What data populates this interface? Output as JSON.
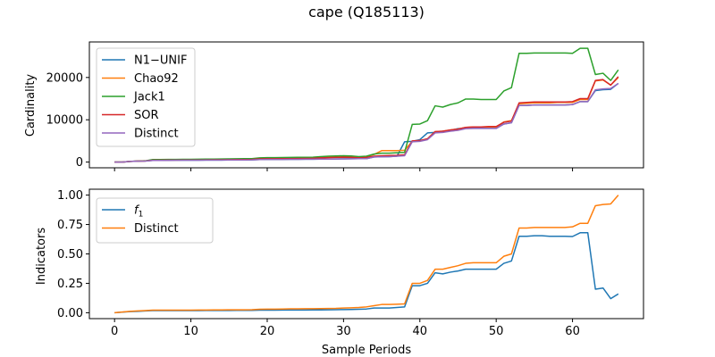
{
  "figure": {
    "title": "cape (Q185113)",
    "xlabel": "Sample Periods"
  },
  "chart_data": [
    {
      "type": "line",
      "ylabel": "Cardinality",
      "xlim": [
        -3.3,
        69.3
      ],
      "ylim": [
        -1350,
        28400
      ],
      "xticks": [
        0,
        10,
        20,
        30,
        40,
        50,
        60
      ],
      "xticklabels_visible": false,
      "yticks": [
        0,
        10000,
        20000
      ],
      "yticklabels": [
        "0",
        "10000",
        "20000"
      ],
      "grid": false,
      "legend": "top-left",
      "x": [
        0,
        1,
        2,
        3,
        4,
        5,
        6,
        7,
        8,
        9,
        10,
        11,
        12,
        13,
        14,
        15,
        16,
        17,
        18,
        19,
        20,
        21,
        22,
        23,
        24,
        25,
        26,
        27,
        28,
        29,
        30,
        31,
        32,
        33,
        34,
        35,
        36,
        37,
        38,
        39,
        40,
        41,
        42,
        43,
        44,
        45,
        46,
        47,
        48,
        49,
        50,
        51,
        52,
        53,
        54,
        55,
        56,
        57,
        58,
        59,
        60,
        61,
        62,
        63,
        64,
        65,
        66
      ],
      "series": [
        {
          "name": "N1−UNIF",
          "color": "#1f77b4",
          "values": [
            0,
            0,
            150,
            220,
            250,
            400,
            400,
            420,
            430,
            440,
            440,
            450,
            460,
            470,
            480,
            490,
            500,
            500,
            510,
            600,
            620,
            620,
            640,
            650,
            660,
            670,
            680,
            700,
            720,
            740,
            760,
            780,
            800,
            820,
            1200,
            1250,
            1300,
            1400,
            4800,
            4900,
            5300,
            6900,
            7000,
            7300,
            7500,
            7900,
            8000,
            8000,
            8000,
            8000,
            8000,
            9000,
            9300,
            13400,
            13400,
            13500,
            13500,
            13500,
            13500,
            13500,
            13600,
            14300,
            14300,
            16900,
            17100,
            17200,
            18600
          ]
        },
        {
          "name": "Chao92",
          "color": "#ff7f0e",
          "values": [
            0,
            0,
            150,
            200,
            250,
            500,
            500,
            520,
            540,
            560,
            560,
            580,
            600,
            620,
            640,
            660,
            680,
            700,
            720,
            900,
            950,
            950,
            980,
            1000,
            1020,
            1040,
            1060,
            1200,
            1300,
            1350,
            1400,
            1350,
            1200,
            1300,
            1800,
            2700,
            2700,
            2700,
            2800,
            4900,
            5000,
            5500,
            7200,
            7300,
            7600,
            7800,
            8200,
            8300,
            8300,
            8300,
            8300,
            9500,
            9800,
            13800,
            13900,
            14000,
            14000,
            14000,
            14100,
            14100,
            14100,
            14800,
            14800,
            19200,
            19400,
            18200,
            20000
          ]
        },
        {
          "name": "Jack1",
          "color": "#2ca02c",
          "values": [
            0,
            0,
            150,
            220,
            300,
            600,
            600,
            620,
            640,
            660,
            660,
            680,
            700,
            720,
            740,
            760,
            780,
            800,
            820,
            1000,
            1050,
            1050,
            1080,
            1100,
            1120,
            1140,
            1160,
            1300,
            1400,
            1450,
            1500,
            1450,
            1300,
            1400,
            1900,
            2100,
            2100,
            2200,
            2300,
            8900,
            9000,
            9800,
            13300,
            13000,
            13600,
            14000,
            14900,
            14900,
            14800,
            14800,
            14800,
            16800,
            17600,
            25700,
            25700,
            25800,
            25800,
            25800,
            25800,
            25800,
            25700,
            26900,
            26900,
            20700,
            21000,
            19300,
            21800
          ]
        },
        {
          "name": "SOR",
          "color": "#d62728",
          "values": [
            0,
            0,
            150,
            220,
            250,
            450,
            450,
            470,
            480,
            490,
            490,
            500,
            520,
            540,
            560,
            580,
            600,
            610,
            620,
            750,
            780,
            780,
            800,
            820,
            840,
            860,
            880,
            1000,
            1050,
            1100,
            1150,
            1100,
            1000,
            1100,
            1400,
            1500,
            1550,
            1600,
            1700,
            5000,
            5100,
            5500,
            7200,
            7300,
            7600,
            7800,
            8200,
            8300,
            8300,
            8400,
            8400,
            9400,
            9700,
            14000,
            14100,
            14200,
            14200,
            14200,
            14200,
            14200,
            14300,
            15000,
            15000,
            19300,
            19500,
            18200,
            20200
          ]
        },
        {
          "name": "Distinct",
          "color": "#9467bd",
          "values": [
            0,
            0,
            150,
            200,
            230,
            400,
            400,
            420,
            430,
            440,
            440,
            450,
            460,
            470,
            480,
            490,
            500,
            500,
            510,
            600,
            620,
            620,
            640,
            650,
            660,
            670,
            680,
            700,
            720,
            740,
            760,
            780,
            800,
            820,
            1200,
            1250,
            1300,
            1400,
            1500,
            4800,
            4900,
            5300,
            6900,
            7000,
            7300,
            7500,
            7900,
            7950,
            7950,
            7950,
            7950,
            9000,
            9300,
            13400,
            13400,
            13500,
            13500,
            13500,
            13500,
            13500,
            13600,
            14300,
            14300,
            17100,
            17300,
            17400,
            18600
          ]
        }
      ]
    },
    {
      "type": "line",
      "ylabel": "Indicators",
      "xlim": [
        -3.3,
        69.3
      ],
      "ylim": [
        -0.05,
        1.05
      ],
      "xticks": [
        0,
        10,
        20,
        30,
        40,
        50,
        60
      ],
      "xticklabels": [
        "0",
        "10",
        "20",
        "30",
        "40",
        "50",
        "60"
      ],
      "yticks": [
        0.0,
        0.25,
        0.5,
        0.75,
        1.0
      ],
      "yticklabels": [
        "0.00",
        "0.25",
        "0.50",
        "0.75",
        "1.00"
      ],
      "grid": false,
      "legend": "top-left",
      "x": [
        0,
        1,
        2,
        3,
        4,
        5,
        6,
        7,
        8,
        9,
        10,
        11,
        12,
        13,
        14,
        15,
        16,
        17,
        18,
        19,
        20,
        21,
        22,
        23,
        24,
        25,
        26,
        27,
        28,
        29,
        30,
        31,
        32,
        33,
        34,
        35,
        36,
        37,
        38,
        39,
        40,
        41,
        42,
        43,
        44,
        45,
        46,
        47,
        48,
        49,
        50,
        51,
        52,
        53,
        54,
        55,
        56,
        57,
        58,
        59,
        60,
        61,
        62,
        63,
        64,
        65,
        66
      ],
      "series": [
        {
          "name": "f",
          "name_sub": "1",
          "color": "#1f77b4",
          "values": [
            0,
            0.005,
            0.01,
            0.012,
            0.015,
            0.018,
            0.018,
            0.018,
            0.018,
            0.018,
            0.018,
            0.018,
            0.019,
            0.019,
            0.019,
            0.019,
            0.02,
            0.02,
            0.02,
            0.022,
            0.022,
            0.022,
            0.023,
            0.023,
            0.023,
            0.023,
            0.024,
            0.024,
            0.025,
            0.026,
            0.027,
            0.028,
            0.03,
            0.032,
            0.04,
            0.04,
            0.04,
            0.045,
            0.05,
            0.23,
            0.23,
            0.25,
            0.34,
            0.33,
            0.345,
            0.355,
            0.37,
            0.37,
            0.37,
            0.37,
            0.37,
            0.42,
            0.44,
            0.65,
            0.65,
            0.655,
            0.655,
            0.65,
            0.65,
            0.65,
            0.648,
            0.68,
            0.68,
            0.2,
            0.21,
            0.12,
            0.16
          ]
        },
        {
          "name": "Distinct",
          "color": "#ff7f0e",
          "values": [
            0,
            0.006,
            0.012,
            0.015,
            0.018,
            0.022,
            0.022,
            0.022,
            0.022,
            0.022,
            0.022,
            0.023,
            0.023,
            0.024,
            0.024,
            0.025,
            0.025,
            0.025,
            0.026,
            0.03,
            0.031,
            0.031,
            0.032,
            0.033,
            0.033,
            0.034,
            0.034,
            0.035,
            0.036,
            0.037,
            0.04,
            0.042,
            0.045,
            0.05,
            0.06,
            0.07,
            0.07,
            0.072,
            0.075,
            0.25,
            0.25,
            0.275,
            0.37,
            0.37,
            0.385,
            0.4,
            0.42,
            0.425,
            0.425,
            0.425,
            0.425,
            0.48,
            0.5,
            0.72,
            0.72,
            0.725,
            0.725,
            0.725,
            0.725,
            0.725,
            0.73,
            0.76,
            0.76,
            0.91,
            0.92,
            0.925,
            1.0
          ]
        }
      ]
    }
  ]
}
